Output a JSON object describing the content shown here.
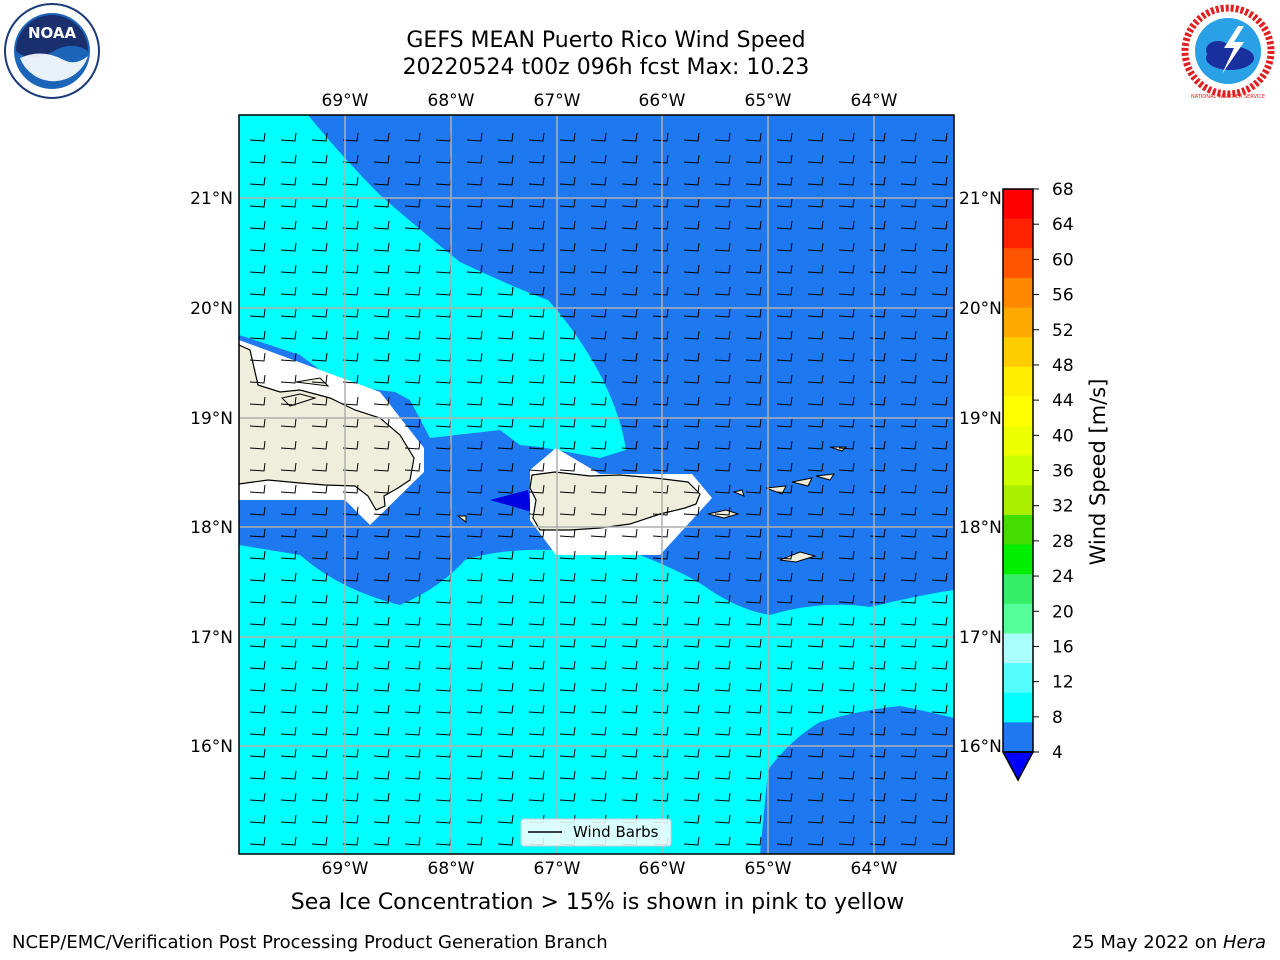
{
  "title": {
    "line1": "GEFS MEAN Puerto Rico Wind Speed",
    "line2": "20220524 t00z 096h fcst   Max: 10.23"
  },
  "map": {
    "lon_labels": [
      "69°W",
      "68°W",
      "67°W",
      "66°W",
      "65°W",
      "64°W"
    ],
    "lat_labels": [
      "21°N",
      "20°N",
      "19°N",
      "18°N",
      "17°N",
      "16°N"
    ],
    "legend_label": "Wind Barbs",
    "region": "Puerto Rico",
    "colors": {
      "band_4_8": "#1e78f0",
      "band_8_12": "#00ffff",
      "land": "#efeedc",
      "below_4": "#0000e0"
    }
  },
  "colorbar": {
    "label": "Wind Speed [m/s]",
    "ticks": [
      "68",
      "64",
      "60",
      "56",
      "52",
      "48",
      "44",
      "40",
      "36",
      "32",
      "28",
      "24",
      "20",
      "16",
      "12",
      "8",
      "4"
    ],
    "colors": [
      "#ff0000",
      "#ff2200",
      "#ff5500",
      "#ff8800",
      "#ffaa00",
      "#ffcc00",
      "#ffee00",
      "#ffff00",
      "#eeff00",
      "#ccff00",
      "#aaee00",
      "#44dd00",
      "#00ee00",
      "#33ee66",
      "#55ff99",
      "#aaffff",
      "#55ffff",
      "#00ffff",
      "#1e78f0"
    ]
  },
  "caption": "Sea Ice Concentration > 15% is shown in pink to yellow",
  "footer": {
    "left": "NCEP/EMC/Verification Post Processing Product Generation Branch",
    "right_date": "25 May 2022 on ",
    "right_host": "Hera"
  },
  "logos": {
    "left": "NOAA",
    "right": "NATIONAL WEATHER SERVICE"
  }
}
